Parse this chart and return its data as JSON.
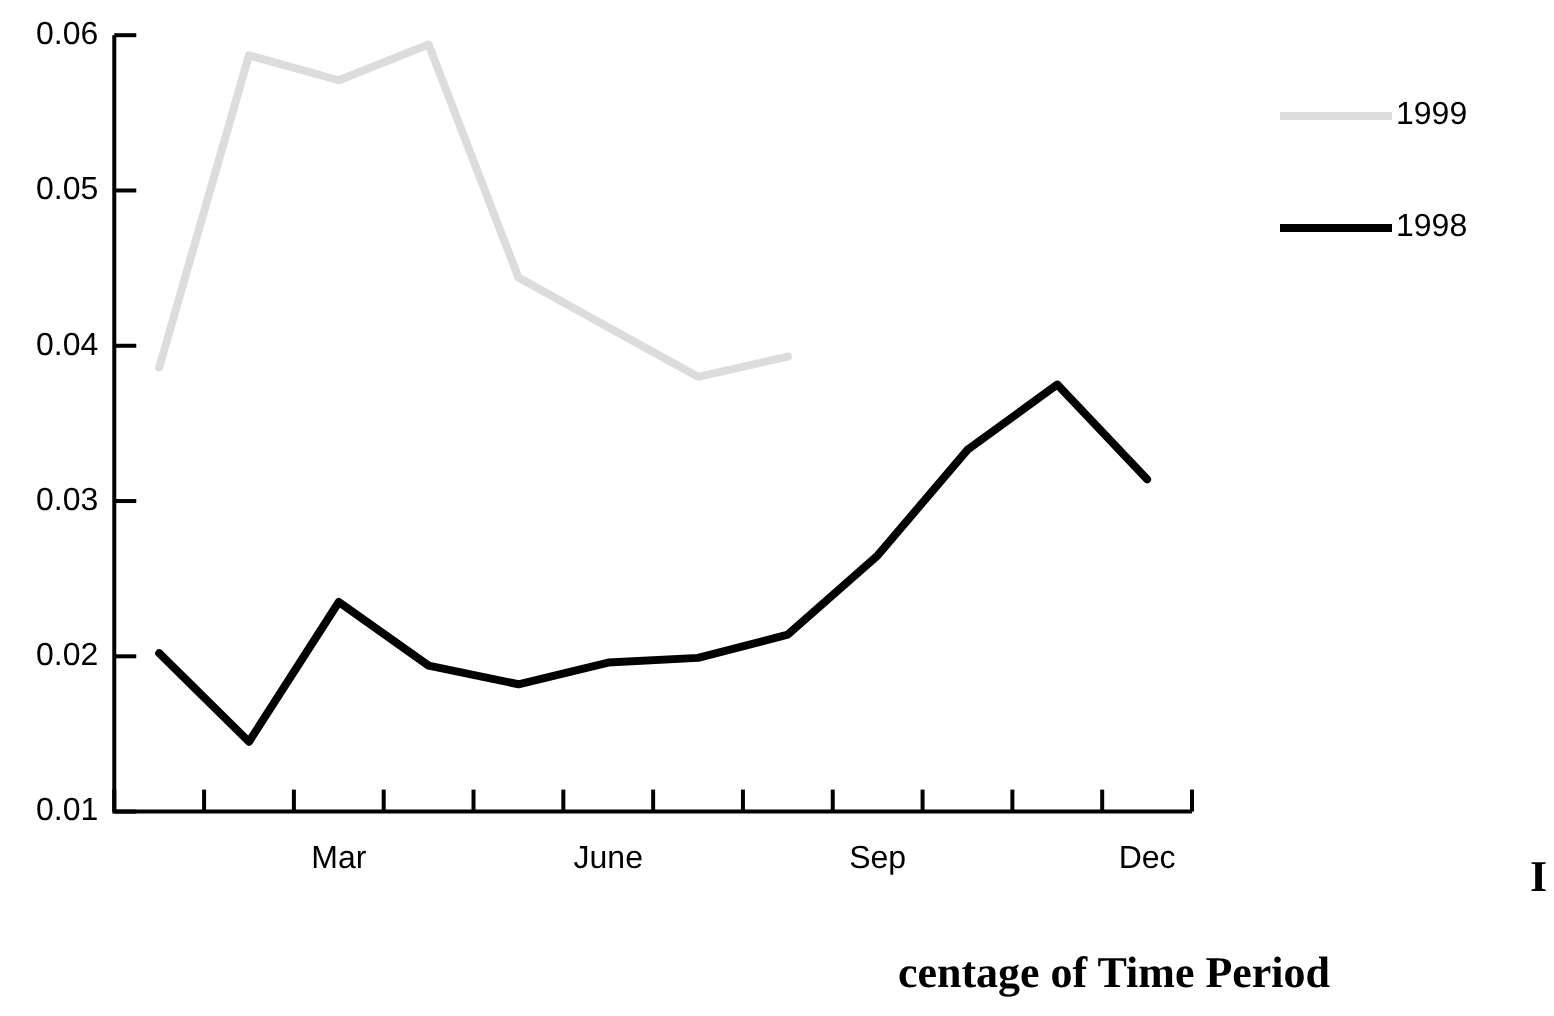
{
  "chart_data": {
    "type": "line",
    "categories": [
      null,
      null,
      "Mar",
      null,
      null,
      "June",
      null,
      null,
      "Sep",
      null,
      null,
      "Dec"
    ],
    "series": [
      {
        "name": "1999",
        "color": "#dcdcdc",
        "values": [
          0.0386,
          0.0587,
          0.0571,
          0.0594,
          0.0444,
          0.0412,
          0.038,
          0.0393,
          null,
          null,
          null,
          null
        ]
      },
      {
        "name": "1998",
        "color": "#000000",
        "values": [
          0.0202,
          0.0145,
          0.0235,
          0.0194,
          0.0182,
          0.0196,
          0.0199,
          0.0214,
          0.0265,
          0.0333,
          0.0375,
          0.0314
        ]
      }
    ],
    "ylim": [
      0.01,
      0.06
    ],
    "yticks": [
      0.01,
      0.02,
      0.03,
      0.04,
      0.05,
      0.06
    ],
    "grid": false,
    "legend": "top right",
    "marker": "none",
    "line_style": "solid",
    "annotations": [
      "centage of Time Period",
      "I"
    ]
  }
}
